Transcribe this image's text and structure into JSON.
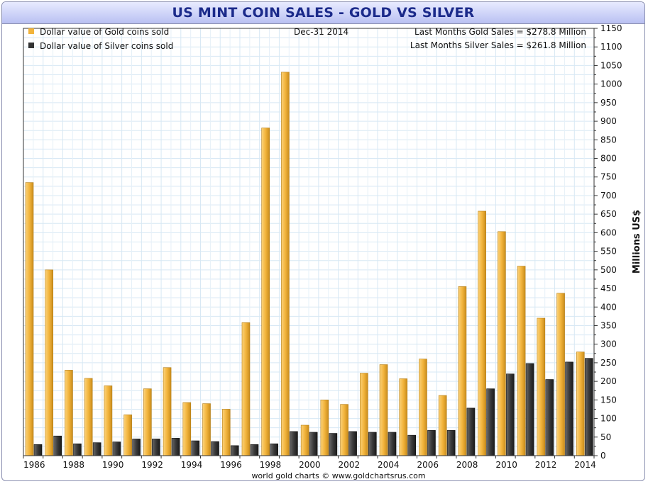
{
  "chart_data": {
    "type": "bar",
    "title": "US MINT COIN SALES - GOLD VS SILVER",
    "ylabel": "Millions US$",
    "date_label": "Dec-31  2014",
    "footer": "world gold charts © www.goldchartsrus.com",
    "notes": [
      "Last Months Gold Sales  = $278.8 Million",
      "Last Months Silver Sales = $261.8 Million"
    ],
    "ylim": [
      0,
      1150
    ],
    "y_ticks": [
      0,
      50,
      100,
      150,
      200,
      250,
      300,
      350,
      400,
      450,
      500,
      550,
      600,
      650,
      700,
      750,
      800,
      850,
      900,
      950,
      1000,
      1050,
      1100,
      1150
    ],
    "categories": [
      "1986",
      "1987",
      "1988",
      "1989",
      "1990",
      "1991",
      "1992",
      "1993",
      "1994",
      "1995",
      "1996",
      "1997",
      "1998",
      "1999",
      "2000",
      "2001",
      "2002",
      "2003",
      "2004",
      "2005",
      "2006",
      "2007",
      "2008",
      "2009",
      "2010",
      "2011",
      "2012",
      "2013",
      "2014"
    ],
    "x_tick_labels": [
      "1986",
      "",
      "1988",
      "",
      "1990",
      "",
      "1992",
      "",
      "1994",
      "",
      "1996",
      "",
      "1998",
      "",
      "2000",
      "",
      "2002",
      "",
      "2004",
      "",
      "2006",
      "",
      "2008",
      "",
      "2010",
      "",
      "2012",
      "",
      "2014"
    ],
    "series": [
      {
        "name": "Dollar value of Gold coins sold",
        "color": "#f2b43c",
        "values": [
          735,
          500,
          230,
          208,
          188,
          110,
          180,
          237,
          143,
          140,
          125,
          358,
          882,
          1032,
          82,
          150,
          138,
          222,
          245,
          207,
          260,
          162,
          455,
          658,
          603,
          510,
          370,
          437,
          279
        ]
      },
      {
        "name": "Dollar value of Silver coins sold",
        "color": "#333333",
        "values": [
          30,
          53,
          32,
          35,
          37,
          45,
          45,
          47,
          40,
          38,
          27,
          30,
          32,
          65,
          63,
          60,
          65,
          63,
          63,
          55,
          68,
          68,
          128,
          180,
          220,
          248,
          205,
          252,
          262
        ]
      }
    ],
    "grid": true,
    "legend_position": "top-left",
    "y_axis_side": "right"
  }
}
